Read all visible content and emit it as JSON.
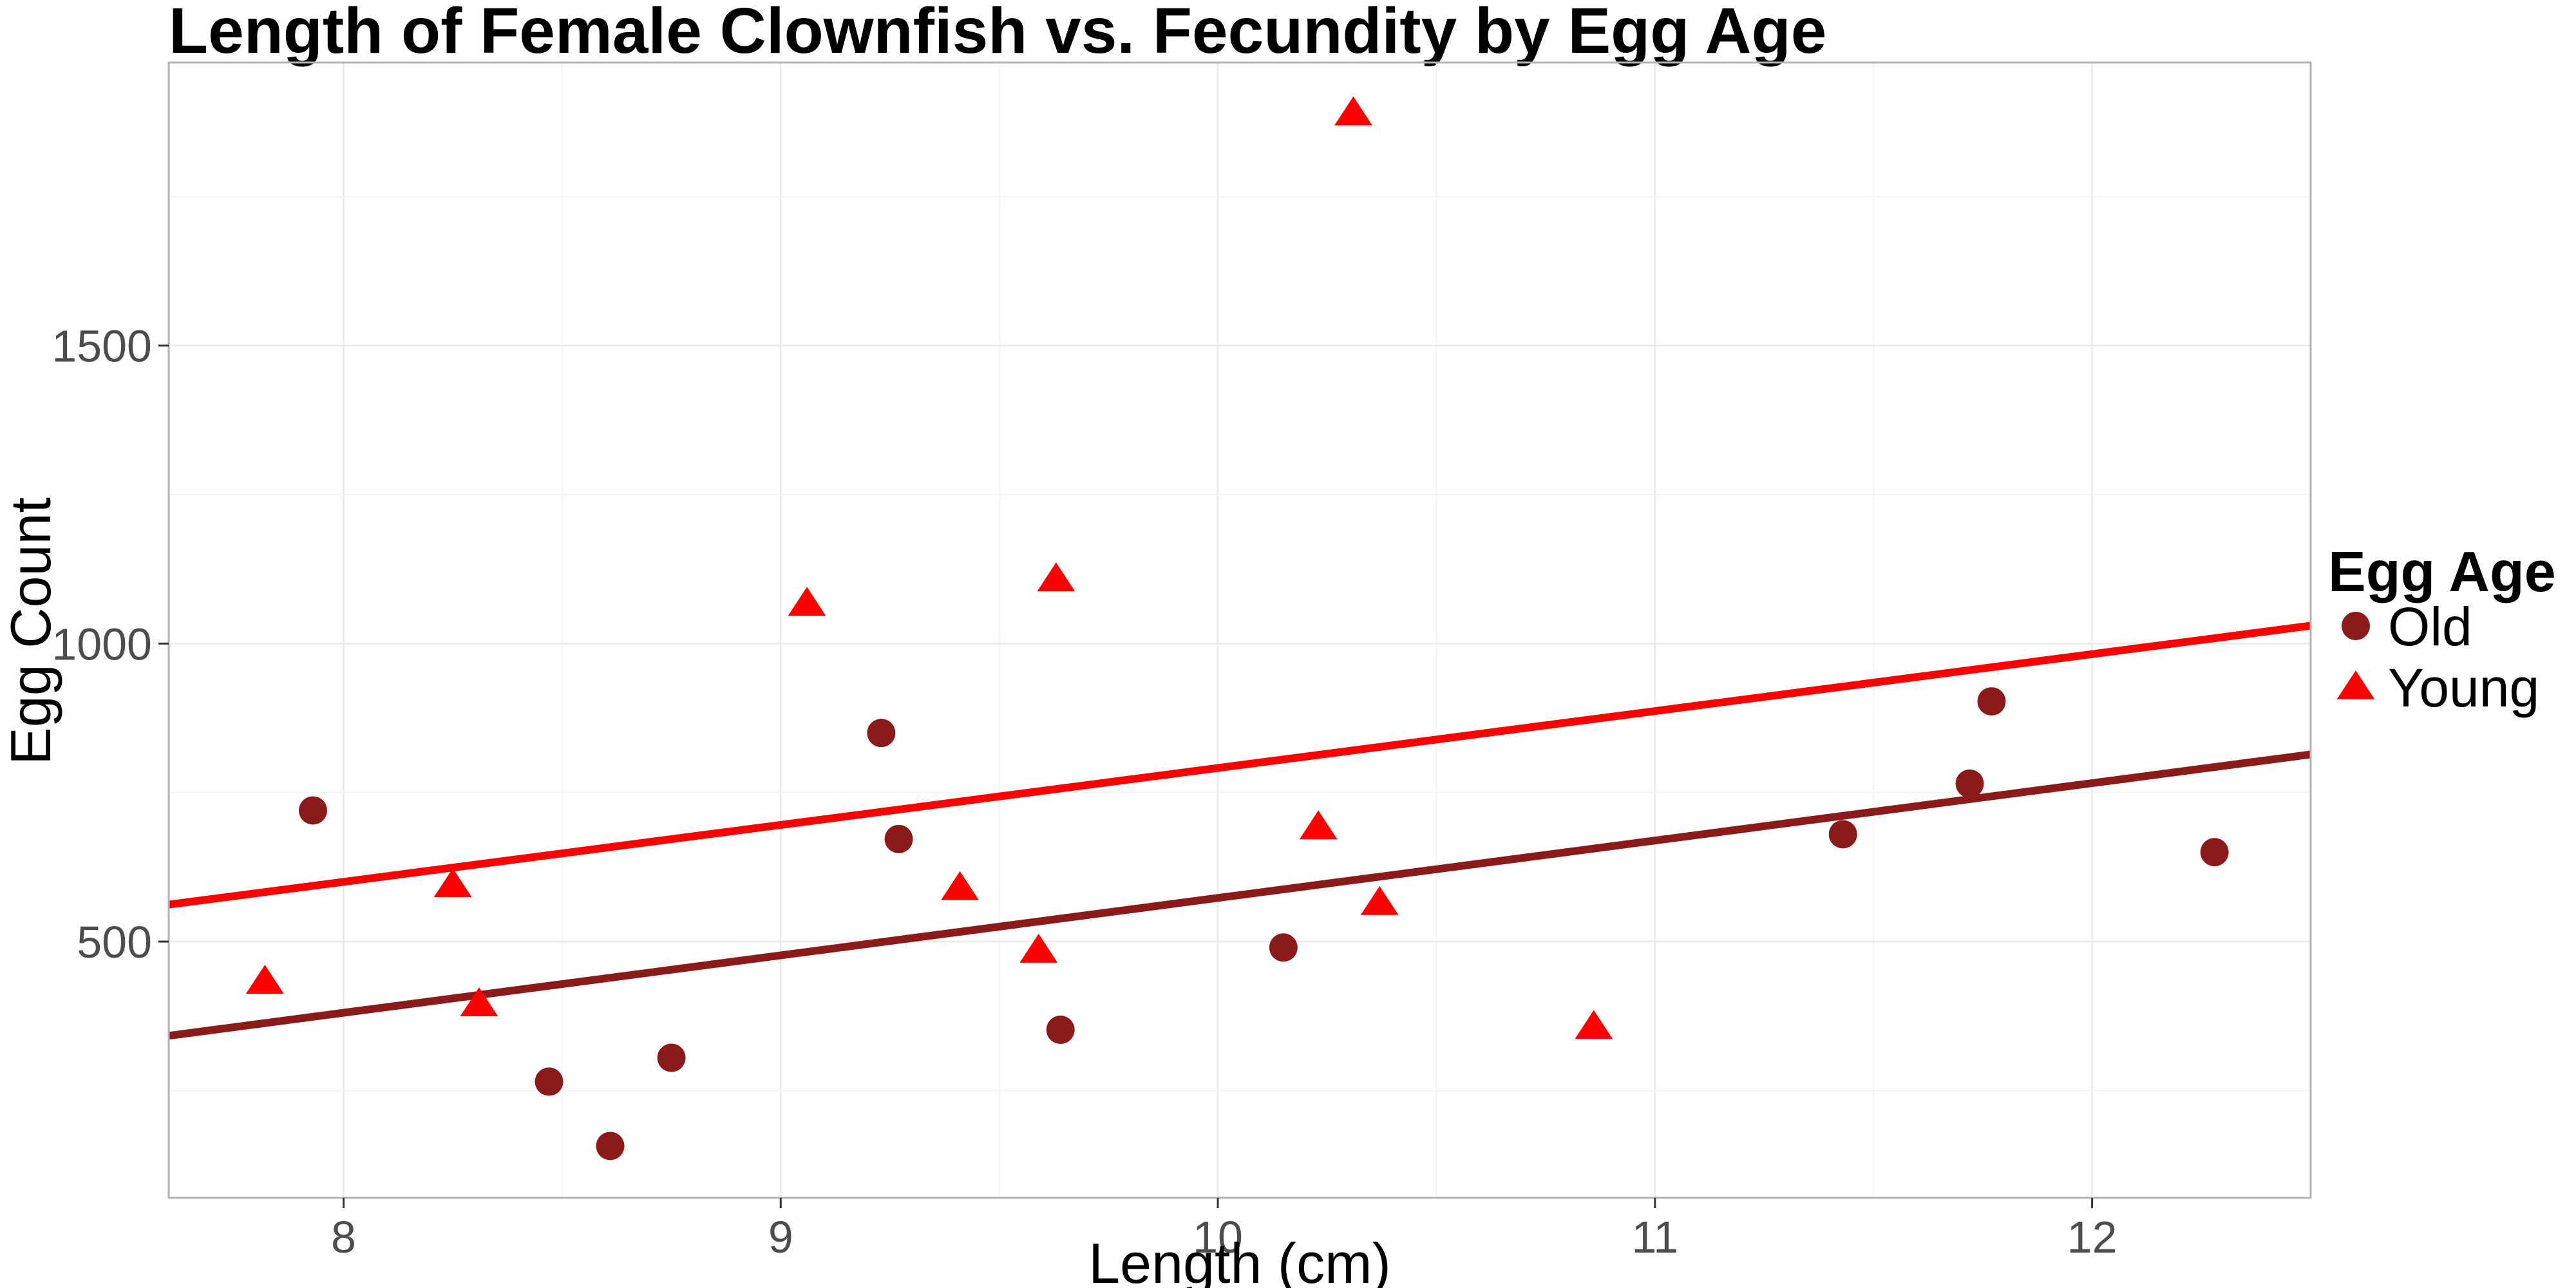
{
  "chart_data": {
    "type": "scatter",
    "title": "Length of Female Clownfish vs. Fecundity by Egg Age",
    "xlabel": "Length (cm)",
    "ylabel": "Egg Count",
    "xlim": [
      7.6,
      12.5
    ],
    "ylim": [
      70,
      1975
    ],
    "x_ticks": [
      8,
      9,
      10,
      11,
      12
    ],
    "y_ticks": [
      500,
      1000,
      1500
    ],
    "grid": true,
    "legend": {
      "title": "Egg Age",
      "position": "right"
    },
    "series": [
      {
        "name": "Old",
        "shape": "circle",
        "color": "#8b1a1a",
        "points": [
          {
            "x": 7.93,
            "y": 720
          },
          {
            "x": 8.47,
            "y": 265
          },
          {
            "x": 8.61,
            "y": 157
          },
          {
            "x": 8.75,
            "y": 305
          },
          {
            "x": 9.23,
            "y": 850
          },
          {
            "x": 9.27,
            "y": 672
          },
          {
            "x": 9.64,
            "y": 352
          },
          {
            "x": 10.15,
            "y": 490
          },
          {
            "x": 11.43,
            "y": 680
          },
          {
            "x": 11.72,
            "y": 765
          },
          {
            "x": 11.77,
            "y": 903
          },
          {
            "x": 12.28,
            "y": 650
          }
        ],
        "trend": {
          "x": [
            7.6,
            12.5
          ],
          "y": [
            342,
            814
          ]
        }
      },
      {
        "name": "Young",
        "shape": "triangle",
        "color": "#ff0000",
        "points": [
          {
            "x": 7.82,
            "y": 433
          },
          {
            "x": 8.25,
            "y": 595
          },
          {
            "x": 8.31,
            "y": 395
          },
          {
            "x": 9.06,
            "y": 1067
          },
          {
            "x": 9.41,
            "y": 590
          },
          {
            "x": 9.59,
            "y": 485
          },
          {
            "x": 9.63,
            "y": 1108
          },
          {
            "x": 10.23,
            "y": 692
          },
          {
            "x": 10.31,
            "y": 1890
          },
          {
            "x": 10.37,
            "y": 565
          },
          {
            "x": 10.86,
            "y": 357
          }
        ],
        "trend": {
          "x": [
            7.6,
            12.5
          ],
          "y": [
            562,
            1030
          ]
        }
      }
    ]
  }
}
